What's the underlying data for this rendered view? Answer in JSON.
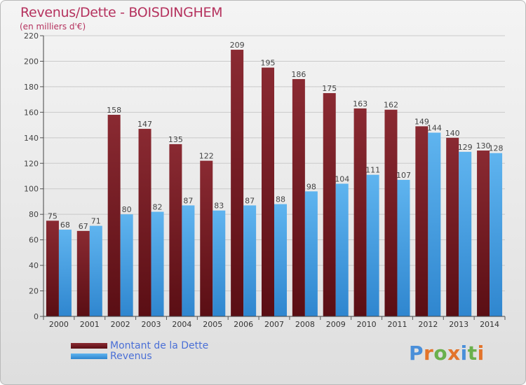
{
  "title": "Revenus/Dette - BOISDINGHEM",
  "subtitle": "(en milliers d'€)",
  "logo_text": "Proxiti",
  "colors": {
    "debt": "#7a1e24",
    "revenue": "#4aa4e6",
    "title": "#b5325e",
    "legend_text": "#4a6fd6"
  },
  "chart_data": {
    "type": "bar",
    "title": "Revenus/Dette - BOISDINGHEM",
    "ylabel": "",
    "xlabel": "",
    "ylim": [
      0,
      220
    ],
    "yticks": [
      0,
      20,
      40,
      60,
      80,
      100,
      120,
      140,
      160,
      180,
      200,
      220
    ],
    "grid": true,
    "legend_position": "bottom-left",
    "categories": [
      "2000",
      "2001",
      "2002",
      "2003",
      "2004",
      "2005",
      "2006",
      "2007",
      "2008",
      "2009",
      "2010",
      "2011",
      "2012",
      "2013",
      "2014"
    ],
    "series": [
      {
        "name": "Montant de la Dette",
        "values": [
          75,
          67,
          158,
          147,
          135,
          122,
          209,
          195,
          186,
          175,
          163,
          162,
          149,
          140,
          130
        ]
      },
      {
        "name": "Revenus",
        "values": [
          68,
          71,
          80,
          82,
          87,
          83,
          87,
          88,
          98,
          104,
          111,
          107,
          144,
          129,
          128
        ]
      }
    ]
  }
}
